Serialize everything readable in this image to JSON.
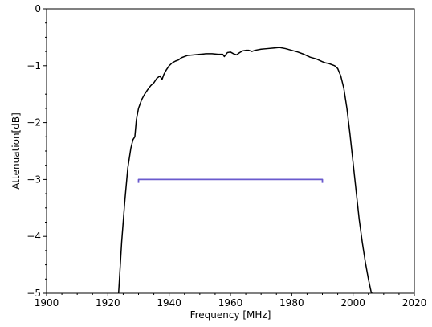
{
  "chart_data": {
    "type": "line",
    "title": "",
    "xlabel": "Frequency [MHz]",
    "ylabel": "Attenuation[dB]",
    "xlim": [
      1900,
      2020
    ],
    "ylim": [
      -5,
      0
    ],
    "x_ticks": [
      1900,
      1920,
      1940,
      1960,
      1980,
      2000,
      2020
    ],
    "y_ticks": [
      0,
      -1,
      -2,
      -3,
      -4,
      -5
    ],
    "x_tick_labels": [
      "1900",
      "1920",
      "1940",
      "1960",
      "1980",
      "2000",
      "2020"
    ],
    "y_tick_labels": [
      "0",
      "−1",
      "−2",
      "−3",
      "−4",
      "−5"
    ],
    "grid": false,
    "legend": "none",
    "series": [
      {
        "color": "#000000",
        "x": [
          1923.5,
          1924.5,
          1925.5,
          1926.5,
          1927.5,
          1928.2,
          1928.8,
          1929.3,
          1930,
          1931,
          1932,
          1933,
          1934,
          1935,
          1936,
          1937,
          1937.7,
          1938.3,
          1939,
          1940,
          1941,
          1942,
          1943,
          1944,
          1945,
          1946,
          1948,
          1950,
          1952,
          1954,
          1956,
          1957.5,
          1958,
          1959,
          1960,
          1961,
          1962,
          1963,
          1964,
          1965,
          1966,
          1967,
          1968,
          1970,
          1972,
          1974,
          1976,
          1978,
          1980,
          1982,
          1984,
          1986,
          1988,
          1990,
          1991,
          1992,
          1993,
          1994,
          1995,
          1996,
          1997,
          1998,
          1999,
          2000,
          2001,
          2002,
          2003,
          2004,
          2005,
          2006,
          2006.5
        ],
        "y": [
          -5.0,
          -4.1,
          -3.4,
          -2.8,
          -2.45,
          -2.3,
          -2.25,
          -1.95,
          -1.75,
          -1.6,
          -1.5,
          -1.42,
          -1.35,
          -1.3,
          -1.22,
          -1.18,
          -1.24,
          -1.15,
          -1.08,
          -1.0,
          -0.95,
          -0.92,
          -0.9,
          -0.86,
          -0.84,
          -0.82,
          -0.81,
          -0.8,
          -0.79,
          -0.79,
          -0.8,
          -0.8,
          -0.84,
          -0.77,
          -0.76,
          -0.79,
          -0.81,
          -0.77,
          -0.74,
          -0.73,
          -0.73,
          -0.75,
          -0.73,
          -0.71,
          -0.7,
          -0.69,
          -0.68,
          -0.7,
          -0.73,
          -0.76,
          -0.8,
          -0.85,
          -0.88,
          -0.93,
          -0.95,
          -0.96,
          -0.98,
          -1.0,
          -1.05,
          -1.18,
          -1.4,
          -1.75,
          -2.2,
          -2.7,
          -3.2,
          -3.7,
          -4.1,
          -4.45,
          -4.75,
          -5.0,
          -5.0
        ]
      },
      {
        "color": "#6a5acd",
        "x": [
          1930,
          1930,
          1990,
          1990
        ],
        "y": [
          -3.06,
          -3.0,
          -3.0,
          -3.06
        ]
      }
    ]
  }
}
